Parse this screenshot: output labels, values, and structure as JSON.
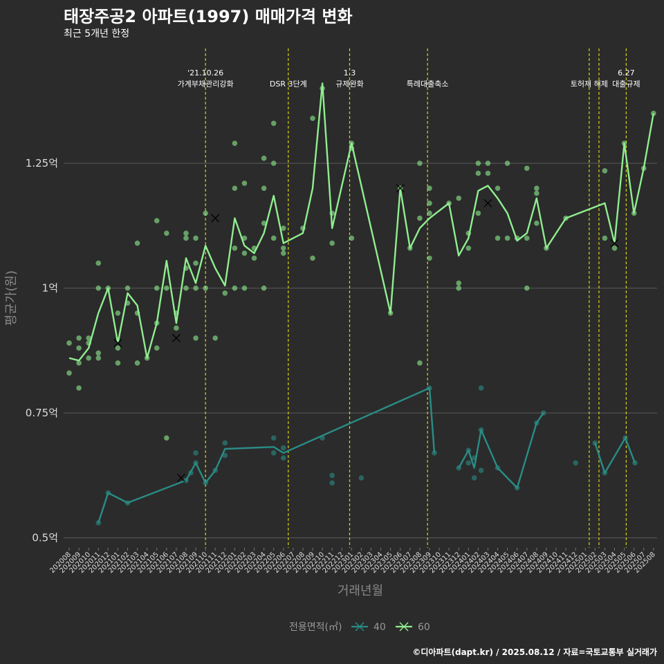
{
  "header": {
    "title": "태장주공2 아파트(1997) 매매가격 변화",
    "subtitle": "최근 5개년 한정",
    "caption": "©디아파트(dapt.kr) / 2025.08.12 / 자료=국토교통부 실거래가"
  },
  "colors": {
    "background": "#2b2b2b",
    "series_40": "#2a8c86",
    "series_60": "#90ee90",
    "event_line": "#d4d416",
    "grid": "#555555"
  },
  "chart_data": {
    "type": "line",
    "xlabel": "거래년월",
    "ylabel": "평균가(원)",
    "ylim": [
      0.48,
      1.48
    ],
    "y_ticks": [
      0.5,
      0.75,
      1.0,
      1.25
    ],
    "y_tick_labels": [
      "0.5억",
      "0.75억",
      "1억",
      "1.25억"
    ],
    "x_ticks": [
      "202008",
      "202009",
      "202010",
      "202011",
      "202012",
      "202101",
      "202102",
      "202103",
      "202104",
      "202105",
      "202106",
      "202107",
      "202108",
      "202109",
      "202110",
      "202111",
      "202112",
      "202201",
      "202202",
      "202203",
      "202204",
      "202205",
      "202206",
      "202207",
      "202208",
      "202209",
      "202210",
      "202211",
      "202212",
      "202301",
      "202302",
      "202303",
      "202304",
      "202305",
      "202306",
      "202307",
      "202308",
      "202309",
      "202310",
      "202311",
      "202312",
      "202401",
      "202402",
      "202403",
      "202404",
      "202405",
      "202406",
      "202407",
      "202408",
      "202409",
      "202410",
      "202411",
      "202412",
      "202501",
      "202502",
      "202503",
      "202504",
      "202505",
      "202506",
      "202507",
      "202508"
    ],
    "grid": true,
    "legend": {
      "title": "전용면적(㎡)",
      "position": "bottom",
      "entries": [
        "40",
        "60"
      ]
    },
    "events": [
      {
        "x": 14.0,
        "lines": [
          "'21.10.26",
          "가계부채관리강화"
        ]
      },
      {
        "x": 22.5,
        "lines": [
          "DSR 3단계"
        ]
      },
      {
        "x": 28.8,
        "lines": [
          "1.3",
          "규제완화"
        ]
      },
      {
        "x": 36.8,
        "lines": [
          "특례대출축소"
        ]
      },
      {
        "x": 53.4,
        "lines": [
          "토허제 해제"
        ]
      },
      {
        "x": 54.4,
        "lines": []
      },
      {
        "x": 57.2,
        "lines": [
          "6.27",
          "대출규제"
        ]
      }
    ],
    "series": [
      {
        "name": "40",
        "line": [
          [
            3,
            0.53
          ],
          [
            4,
            0.59
          ],
          [
            6,
            0.57
          ],
          [
            12,
            0.615
          ],
          [
            13,
            0.65
          ],
          [
            14,
            0.61
          ],
          [
            15,
            0.635
          ],
          [
            16,
            0.678
          ],
          [
            21,
            0.682
          ],
          [
            22,
            0.67
          ],
          [
            37,
            0.8
          ],
          [
            37.5,
            0.67
          ],
          [
            null,
            null
          ],
          [
            40,
            0.64
          ],
          [
            41,
            0.675
          ],
          [
            41.6,
            0.64
          ],
          [
            42.3,
            0.716
          ],
          [
            44,
            0.64
          ],
          [
            46,
            0.6
          ],
          [
            48,
            0.73
          ],
          [
            48.7,
            0.75
          ],
          [
            null,
            null
          ],
          [
            54,
            0.69
          ],
          [
            55,
            0.63
          ],
          [
            57.1,
            0.7
          ],
          [
            58.1,
            0.65
          ]
        ],
        "points": [
          [
            3,
            0.53
          ],
          [
            4,
            0.59
          ],
          [
            6,
            0.57
          ],
          [
            12,
            0.615
          ],
          [
            12.5,
            0.63
          ],
          [
            13,
            0.67
          ],
          [
            13,
            0.65
          ],
          [
            14,
            0.61
          ],
          [
            15,
            0.635
          ],
          [
            16,
            0.665
          ],
          [
            16,
            0.69
          ],
          [
            21,
            0.67
          ],
          [
            21,
            0.7
          ],
          [
            22,
            0.66
          ],
          [
            22,
            0.68
          ],
          [
            26,
            0.7
          ],
          [
            27,
            0.61
          ],
          [
            27,
            0.625
          ],
          [
            30,
            0.62
          ],
          [
            37,
            0.8
          ],
          [
            37.5,
            0.67
          ],
          [
            40,
            0.64
          ],
          [
            41,
            0.675
          ],
          [
            41,
            0.65
          ],
          [
            41.6,
            0.62
          ],
          [
            41.6,
            0.66
          ],
          [
            42.3,
            0.716
          ],
          [
            42.3,
            0.635
          ],
          [
            42.3,
            0.8
          ],
          [
            44,
            0.64
          ],
          [
            46,
            0.6
          ],
          [
            48,
            0.73
          ],
          [
            48.7,
            0.75
          ],
          [
            52,
            0.65
          ],
          [
            54,
            0.69
          ],
          [
            55,
            0.63
          ],
          [
            57.1,
            0.7
          ],
          [
            58.1,
            0.65
          ]
        ],
        "crosses": [
          [
            11.5,
            0.62
          ]
        ]
      },
      {
        "name": "60",
        "line": [
          [
            0,
            0.86
          ],
          [
            1,
            0.855
          ],
          [
            2,
            0.88
          ],
          [
            3,
            0.95
          ],
          [
            4,
            1.0
          ],
          [
            5,
            0.89
          ],
          [
            6,
            0.99
          ],
          [
            7,
            0.965
          ],
          [
            8,
            0.86
          ],
          [
            9,
            0.93
          ],
          [
            10,
            1.055
          ],
          [
            11,
            0.93
          ],
          [
            12,
            1.06
          ],
          [
            13,
            1.01
          ],
          [
            14,
            1.085
          ],
          [
            15,
            1.04
          ],
          [
            16,
            1.005
          ],
          [
            17,
            1.14
          ],
          [
            18,
            1.085
          ],
          [
            19,
            1.07
          ],
          [
            20,
            1.11
          ],
          [
            21,
            1.185
          ],
          [
            22,
            1.09
          ],
          [
            24,
            1.11
          ],
          [
            25,
            1.2
          ],
          [
            26,
            1.41
          ],
          [
            27,
            1.12
          ],
          [
            29,
            1.29
          ],
          [
            33,
            0.95
          ],
          [
            34,
            1.2
          ],
          [
            35,
            1.08
          ],
          [
            36,
            1.12
          ],
          [
            37,
            1.14
          ],
          [
            39,
            1.17
          ],
          [
            40,
            1.065
          ],
          [
            41,
            1.1
          ],
          [
            42,
            1.195
          ],
          [
            43,
            1.205
          ],
          [
            44,
            1.18
          ],
          [
            45,
            1.15
          ],
          [
            46,
            1.095
          ],
          [
            47,
            1.11
          ],
          [
            48,
            1.18
          ],
          [
            49,
            1.08
          ],
          [
            51,
            1.14
          ],
          [
            55,
            1.17
          ],
          [
            56,
            1.09
          ],
          [
            57,
            1.29
          ],
          [
            58,
            1.15
          ],
          [
            59,
            1.24
          ],
          [
            60,
            1.35
          ]
        ],
        "points": [
          [
            0,
            0.89
          ],
          [
            0,
            0.83
          ],
          [
            1,
            0.9
          ],
          [
            1,
            0.88
          ],
          [
            1,
            0.8
          ],
          [
            1,
            0.85
          ],
          [
            2,
            0.9
          ],
          [
            2,
            0.89
          ],
          [
            2,
            0.86
          ],
          [
            3,
            1.05
          ],
          [
            3,
            1.0
          ],
          [
            3,
            0.87
          ],
          [
            3,
            0.86
          ],
          [
            4,
            1.0
          ],
          [
            5,
            0.95
          ],
          [
            5,
            0.88
          ],
          [
            5,
            0.85
          ],
          [
            6,
            1.0
          ],
          [
            6,
            0.97
          ],
          [
            7,
            0.95
          ],
          [
            7,
            1.09
          ],
          [
            7,
            0.85
          ],
          [
            8,
            0.86
          ],
          [
            9,
            1.135
          ],
          [
            9,
            1.0
          ],
          [
            9,
            0.93
          ],
          [
            9,
            0.88
          ],
          [
            10,
            1.11
          ],
          [
            10,
            1.0
          ],
          [
            10,
            0.7
          ],
          [
            11,
            0.92
          ],
          [
            11,
            0.95
          ],
          [
            12,
            1.11
          ],
          [
            12,
            1.1
          ],
          [
            12,
            1.04
          ],
          [
            12,
            1.0
          ],
          [
            13,
            1.1
          ],
          [
            13,
            1.05
          ],
          [
            13,
            1.0
          ],
          [
            13,
            0.9
          ],
          [
            14,
            1.15
          ],
          [
            14,
            1.0
          ],
          [
            15,
            0.9
          ],
          [
            16,
            0.99
          ],
          [
            17,
            1.29
          ],
          [
            17,
            1.2
          ],
          [
            17,
            1.08
          ],
          [
            17,
            1.0
          ],
          [
            18,
            1.21
          ],
          [
            18,
            1.1
          ],
          [
            18,
            1.07
          ],
          [
            18,
            1.0
          ],
          [
            19,
            1.08
          ],
          [
            19,
            1.06
          ],
          [
            20,
            1.26
          ],
          [
            20,
            1.2
          ],
          [
            20,
            1.13
          ],
          [
            20,
            1.0
          ],
          [
            21,
            1.33
          ],
          [
            21,
            1.25
          ],
          [
            21,
            1.1
          ],
          [
            22,
            1.12
          ],
          [
            22,
            1.08
          ],
          [
            22,
            1.07
          ],
          [
            24,
            1.12
          ],
          [
            25,
            1.34
          ],
          [
            25,
            1.06
          ],
          [
            26,
            1.4
          ],
          [
            27,
            1.15
          ],
          [
            27,
            1.09
          ],
          [
            29,
            1.29
          ],
          [
            29,
            1.28
          ],
          [
            29,
            1.1
          ],
          [
            33,
            0.95
          ],
          [
            34,
            1.2
          ],
          [
            35,
            1.08
          ],
          [
            36,
            1.25
          ],
          [
            36,
            1.14
          ],
          [
            36,
            0.85
          ],
          [
            37,
            1.2
          ],
          [
            37,
            1.17
          ],
          [
            37,
            1.15
          ],
          [
            37,
            1.06
          ],
          [
            39,
            1.17
          ],
          [
            40,
            1.18
          ],
          [
            40,
            1.01
          ],
          [
            40,
            1.0
          ],
          [
            41,
            1.11
          ],
          [
            41,
            1.08
          ],
          [
            42,
            1.25
          ],
          [
            42,
            1.23
          ],
          [
            42,
            1.15
          ],
          [
            43,
            1.25
          ],
          [
            43,
            1.23
          ],
          [
            44,
            1.2
          ],
          [
            44,
            1.1
          ],
          [
            45,
            1.25
          ],
          [
            45,
            1.1
          ],
          [
            46,
            1.1
          ],
          [
            47,
            1.24
          ],
          [
            47,
            1.1
          ],
          [
            47,
            1.0
          ],
          [
            48,
            1.2
          ],
          [
            48,
            1.19
          ],
          [
            48,
            1.13
          ],
          [
            49,
            1.08
          ],
          [
            51,
            1.14
          ],
          [
            55,
            1.235
          ],
          [
            55,
            1.1
          ],
          [
            56,
            1.08
          ],
          [
            57,
            1.29
          ],
          [
            58,
            1.15
          ],
          [
            59,
            1.24
          ],
          [
            60,
            1.35
          ]
        ],
        "crosses": [
          [
            5,
            0.89
          ],
          [
            11,
            0.9
          ],
          [
            15,
            1.14
          ],
          [
            34,
            1.2
          ],
          [
            43,
            1.17
          ],
          [
            56,
            1.09
          ]
        ]
      }
    ]
  }
}
